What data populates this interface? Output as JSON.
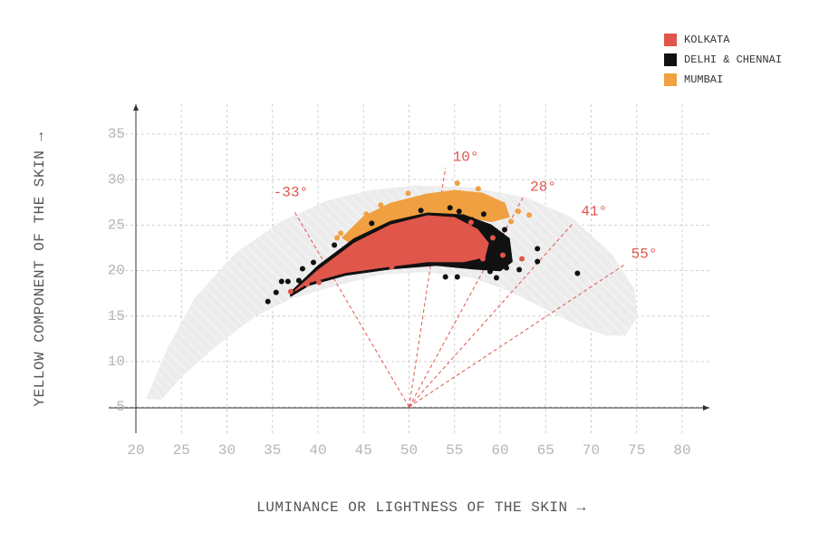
{
  "chart_data": {
    "type": "scatter",
    "x_label": "LUMINANCE OR LIGHTNESS OF THE SKIN →",
    "y_label": "YELLOW COMPONENT OF THE SKIN →",
    "xlim": [
      20,
      80
    ],
    "ylim": [
      5,
      35
    ],
    "xticks": [
      20,
      25,
      30,
      35,
      40,
      45,
      50,
      55,
      60,
      65,
      70,
      75,
      80
    ],
    "yticks": [
      5,
      10,
      15,
      20,
      25,
      30,
      35
    ],
    "grid": true,
    "legend": "upper right",
    "envelope": {
      "color": "#ebebeb",
      "x": [
        21.2,
        23.5,
        26.5,
        30.9,
        35.9,
        40.9,
        45.9,
        50.8,
        56.8,
        62.8,
        67.8,
        72.2,
        74.7,
        75.0,
        73.7,
        71.7,
        68.8,
        64.8,
        60.8,
        56.8,
        51.8,
        46.9,
        41.9,
        36.9,
        32.9,
        29.0,
        25.0,
        22.8
      ],
      "y": [
        5.9,
        11.4,
        16.9,
        21.8,
        25.3,
        27.6,
        28.8,
        29.3,
        29.1,
        28.0,
        25.8,
        21.8,
        17.9,
        14.9,
        12.9,
        12.9,
        13.9,
        15.9,
        17.9,
        19.3,
        19.9,
        19.6,
        18.4,
        16.9,
        14.9,
        11.9,
        8.4,
        5.9
      ]
    },
    "hue_color": "#e0564a",
    "hue_lines": [
      {
        "label": "-33°",
        "x": [
          50,
          37.4
        ],
        "y": [
          5,
          26.5
        ]
      },
      {
        "label": "10°",
        "x": [
          50,
          54.0
        ],
        "y": [
          5,
          31.3
        ]
      },
      {
        "label": "28°",
        "x": [
          50,
          62.5
        ],
        "y": [
          5,
          28.0
        ]
      },
      {
        "label": "41°",
        "x": [
          50,
          68.1
        ],
        "y": [
          5,
          25.3
        ]
      },
      {
        "label": "55°",
        "x": [
          50,
          73.6
        ],
        "y": [
          5,
          20.6
        ]
      }
    ],
    "series": [
      {
        "name": "KOLKATA",
        "color": "#e0564a",
        "region": {
          "x": [
            37.5,
            40,
            44,
            48,
            52,
            55,
            57.5,
            58.7,
            58.3,
            56,
            52,
            48,
            43,
            39
          ],
          "y": [
            17.8,
            20,
            23,
            25,
            26,
            25.8,
            24.5,
            23,
            21.5,
            21,
            21,
            20.5,
            19.8,
            18.7
          ]
        },
        "x": [
          62.4,
          60.3,
          59.2,
          58.1,
          56.8,
          40.1,
          38.8,
          37.0,
          48.1
        ],
        "y": [
          21.3,
          21.7,
          23.6,
          21.3,
          25.3,
          18.7,
          18.5,
          17.7,
          20.4
        ]
      },
      {
        "name": "DELHI & CHENNAI",
        "color": "#111111",
        "region": {
          "x": [
            37,
            40,
            44,
            48,
            52,
            56,
            59,
            61,
            61.3,
            60,
            57,
            53,
            48,
            43,
            39,
            37
          ],
          "y": [
            17.6,
            20.5,
            23.5,
            25.4,
            26.3,
            26.1,
            25,
            23.5,
            21,
            20,
            20.2,
            20.6,
            20.2,
            19.5,
            18.4,
            17.2
          ]
        },
        "x": [
          34.5,
          35.4,
          36.0,
          36.7,
          37.9,
          38.3,
          39.5,
          41.8,
          45.9,
          51.3,
          54.5,
          55.5,
          56.9,
          58.2,
          60.5,
          64.1,
          64.1,
          62.1,
          60.7,
          59.6,
          54.0,
          55.3,
          68.5,
          59.9,
          58.9
        ],
        "y": [
          16.6,
          17.6,
          18.8,
          18.8,
          18.9,
          20.2,
          20.9,
          22.8,
          25.2,
          26.6,
          26.9,
          26.5,
          25.6,
          26.2,
          24.5,
          22.4,
          21.0,
          20.1,
          20.3,
          19.2,
          19.3,
          19.3,
          19.7,
          20.5,
          19.9
        ]
      },
      {
        "name": "MUMBAI",
        "color": "#f0a040",
        "region": {
          "x": [
            42.7,
            45,
            48,
            52,
            55,
            58,
            60.5,
            61,
            59,
            55,
            51,
            47,
            43.5
          ],
          "y": [
            23.6,
            25.9,
            27.4,
            28.4,
            28.8,
            28.5,
            27.4,
            25.9,
            25.4,
            26.2,
            25.9,
            24.7,
            23.1
          ]
        },
        "x": [
          49.9,
          55.3,
          57.6,
          60.4,
          62.0,
          63.2,
          61.2,
          45.3,
          46.9,
          42.5,
          42.1,
          59.4,
          53.6
        ],
        "y": [
          28.5,
          29.6,
          29.0,
          26.8,
          26.5,
          26.1,
          25.4,
          26.2,
          27.2,
          24.1,
          23.6,
          26.5,
          27.9
        ]
      }
    ]
  }
}
